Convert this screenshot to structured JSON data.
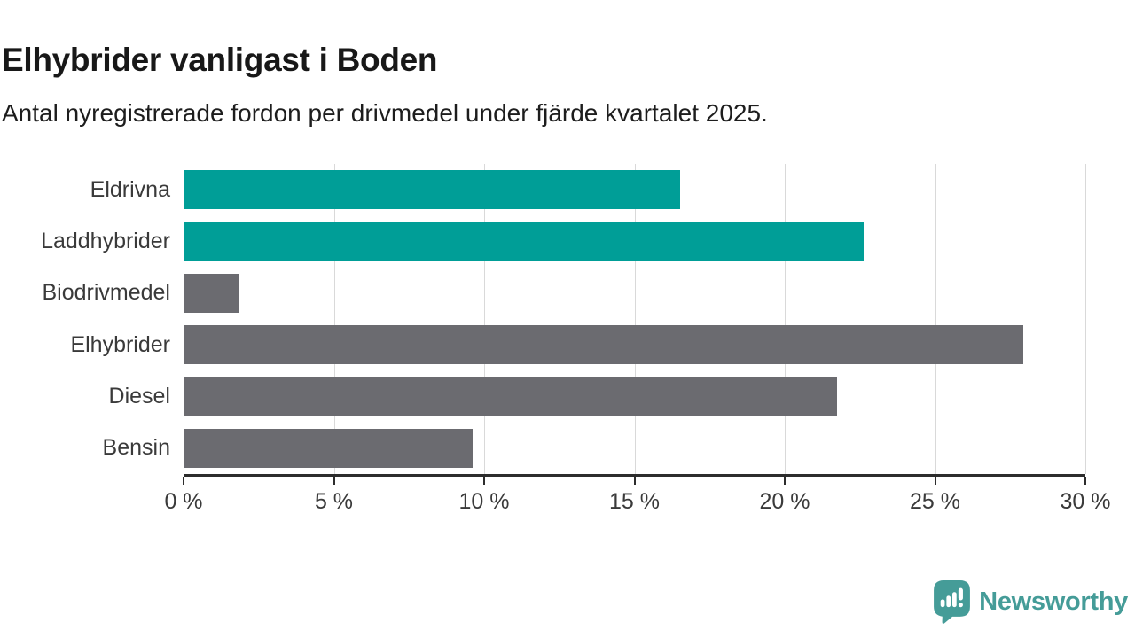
{
  "header": {
    "title": "Elhybrider vanligast i Boden",
    "subtitle": "Antal nyregistrerade fordon per drivmedel under fjärde kvartalet 2025."
  },
  "chart_data": {
    "type": "bar",
    "orientation": "horizontal",
    "title": "Elhybrider vanligast i Boden",
    "subtitle": "Antal nyregistrerade fordon per drivmedel under fjärde kvartalet 2025.",
    "categories": [
      "Eldrivna",
      "Laddhybrider",
      "Biodrivmedel",
      "Elhybrider",
      "Diesel",
      "Bensin"
    ],
    "values": [
      16.5,
      22.6,
      1.8,
      27.9,
      21.7,
      9.6
    ],
    "unit": "%",
    "bar_colors": [
      "#009e97",
      "#009e97",
      "#6b6b70",
      "#6b6b70",
      "#6b6b70",
      "#6b6b70"
    ],
    "xlabel": "",
    "ylabel": "",
    "xlim": [
      0,
      30
    ],
    "x_ticks": [
      0,
      5,
      10,
      15,
      20,
      25,
      30
    ],
    "x_tick_labels": [
      "0 %",
      "5 %",
      "10 %",
      "15 %",
      "20 %",
      "25 %",
      "30 %"
    ],
    "grid": "vertical",
    "legend": "none"
  },
  "colors": {
    "accent_teal": "#009e97",
    "bar_gray": "#6b6b70",
    "gridline": "#d9d9d9",
    "axis": "#2d2d2d",
    "logo_teal": "#459c98"
  },
  "footer": {
    "brand": "Newsworthy"
  },
  "icons": {
    "logo": "newsworthy-speech-bubble-chart-icon"
  }
}
